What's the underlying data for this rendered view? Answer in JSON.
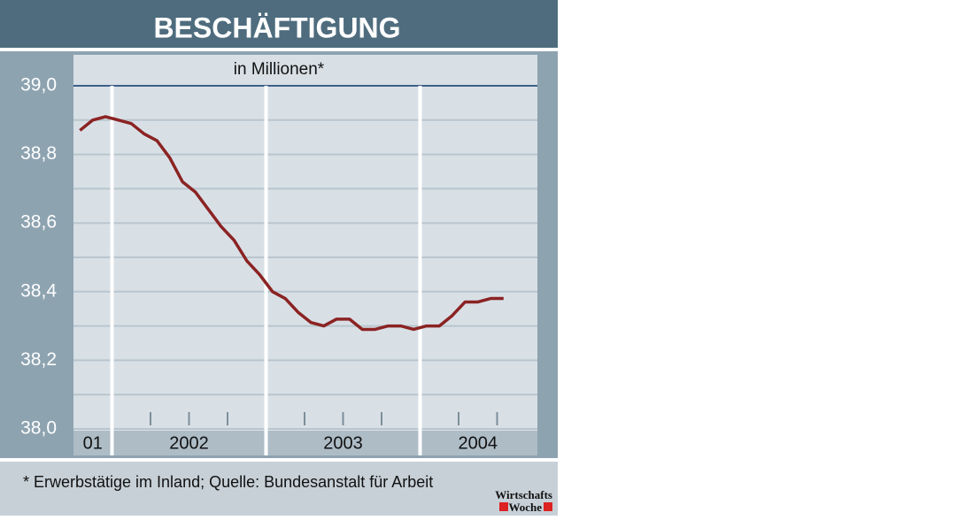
{
  "chart_data": {
    "type": "line",
    "title": "BESCHÄFTIGUNG",
    "subtitle": "in Millionen*",
    "footnote": "* Erwerbstätige im Inland; Quelle: Bundesanstalt für Arbeit",
    "source_logo": [
      "Wirtschafts",
      "Woche"
    ],
    "x": [
      2001.792,
      2001.875,
      2001.958,
      2002.042,
      2002.125,
      2002.208,
      2002.292,
      2002.375,
      2002.458,
      2002.542,
      2002.625,
      2002.708,
      2002.792,
      2002.875,
      2002.958,
      2003.042,
      2003.125,
      2003.208,
      2003.292,
      2003.375,
      2003.458,
      2003.542,
      2003.625,
      2003.708,
      2003.792,
      2003.875,
      2003.958,
      2004.042,
      2004.125,
      2004.208,
      2004.292,
      2004.375,
      2004.458,
      2004.542
    ],
    "series": [
      {
        "name": "Erwerbstätige",
        "color": "#8b2323",
        "values": [
          38.87,
          38.9,
          38.91,
          38.9,
          38.89,
          38.86,
          38.84,
          38.79,
          38.72,
          38.69,
          38.64,
          38.59,
          38.55,
          38.49,
          38.45,
          38.4,
          38.38,
          38.34,
          38.31,
          38.3,
          38.32,
          38.32,
          38.29,
          38.29,
          38.3,
          38.3,
          38.29,
          38.3,
          38.3,
          38.33,
          38.37,
          38.37,
          38.38,
          38.38
        ]
      }
    ],
    "xlim": [
      2001.75,
      2004.75
    ],
    "xgrid": [
      2002,
      2003,
      2004
    ],
    "xminor": [
      2002.25,
      2002.5,
      2002.75,
      2003.25,
      2003.5,
      2003.75,
      2004.25,
      2004.5
    ],
    "periods": [
      {
        "label": "01",
        "start": 2001.75,
        "end": 2002
      },
      {
        "label": "2002",
        "start": 2002,
        "end": 2003
      },
      {
        "label": "2003",
        "start": 2003,
        "end": 2004
      },
      {
        "label": "2004",
        "start": 2004,
        "end": 2004.75
      }
    ],
    "ylim": [
      38.0,
      39.0
    ],
    "yticks": [
      {
        "value": 38.0,
        "label": "38,0"
      },
      {
        "value": 38.2,
        "label": "38,2"
      },
      {
        "value": 38.4,
        "label": "38,4"
      },
      {
        "value": 38.6,
        "label": "38,6"
      },
      {
        "value": 38.8,
        "label": "38,8"
      },
      {
        "value": 39.0,
        "label": "39,0"
      }
    ],
    "yminor": [
      38.1,
      38.3,
      38.5,
      38.7,
      38.9
    ],
    "grid": true
  }
}
